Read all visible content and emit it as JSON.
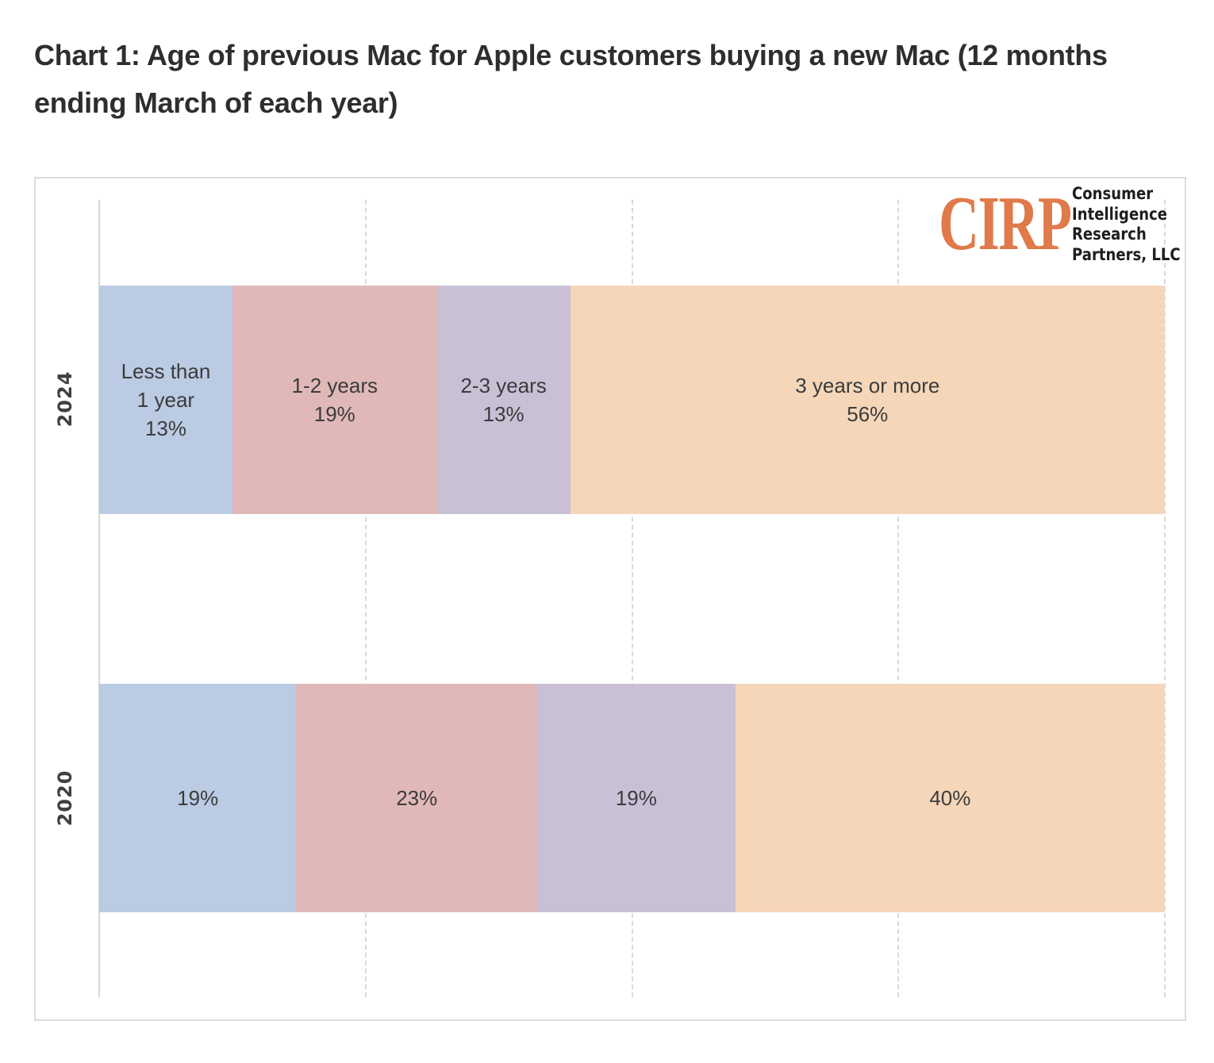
{
  "title": "Chart 1: Age of previous Mac for Apple customers buying a new Mac (12 months ending March of each year)",
  "logo": {
    "mark": "CIRP",
    "lines": [
      "Consumer",
      "Intelligence",
      "Research",
      "Partners, LLC"
    ],
    "mark_color": "#e07a4a"
  },
  "chart_data": {
    "type": "bar",
    "orientation": "horizontal",
    "stacked": true,
    "normalized_to_100": true,
    "title": "Chart 1: Age of previous Mac for Apple customers buying a new Mac (12 months ending March of each year)",
    "xlabel": "",
    "ylabel": "",
    "categories": [
      "2024",
      "2020"
    ],
    "series": [
      {
        "name": "Less than 1 year",
        "color": "#bacbe3",
        "values": [
          13,
          19
        ]
      },
      {
        "name": "1-2 years",
        "color": "#e0b8b8",
        "values": [
          19,
          23
        ]
      },
      {
        "name": "2-3 years",
        "color": "#c9c0d6",
        "values": [
          13,
          19
        ]
      },
      {
        "name": "3 years or more",
        "color": "#f5d6b9",
        "values": [
          56,
          40
        ]
      }
    ],
    "xlim": [
      0,
      100
    ],
    "gridlines_x": [
      25,
      50,
      75,
      100
    ],
    "grid": true,
    "legend": "none (labels inside 2024 bar)",
    "data_labels": {
      "2024": [
        "Less than\n1 year\n13%",
        "1-2 years\n19%",
        "2-3 years\n13%",
        "3 years or more\n56%"
      ],
      "2020": [
        "19%",
        "23%",
        "19%",
        "40%"
      ]
    }
  },
  "bars": [
    {
      "year": "2024",
      "segments": [
        {
          "label": "Less than\n1 year\n13%",
          "pct": 12.5,
          "color": "#bacbe3"
        },
        {
          "label": "1-2 years\n19%",
          "pct": 19.2,
          "color": "#e0b8b8"
        },
        {
          "label": "2-3 years\n13%",
          "pct": 12.5,
          "color": "#c9c0d6"
        },
        {
          "label": "3 years or more\n56%",
          "pct": 55.8,
          "color": "#f5d6b9"
        }
      ]
    },
    {
      "year": "2020",
      "segments": [
        {
          "label": "19%",
          "pct": 18.5,
          "color": "#bacbe3"
        },
        {
          "label": "23%",
          "pct": 22.6,
          "color": "#e0b8b8"
        },
        {
          "label": "19%",
          "pct": 18.6,
          "color": "#c9c0d6"
        },
        {
          "label": "40%",
          "pct": 40.3,
          "color": "#f5d6b9"
        }
      ]
    }
  ]
}
